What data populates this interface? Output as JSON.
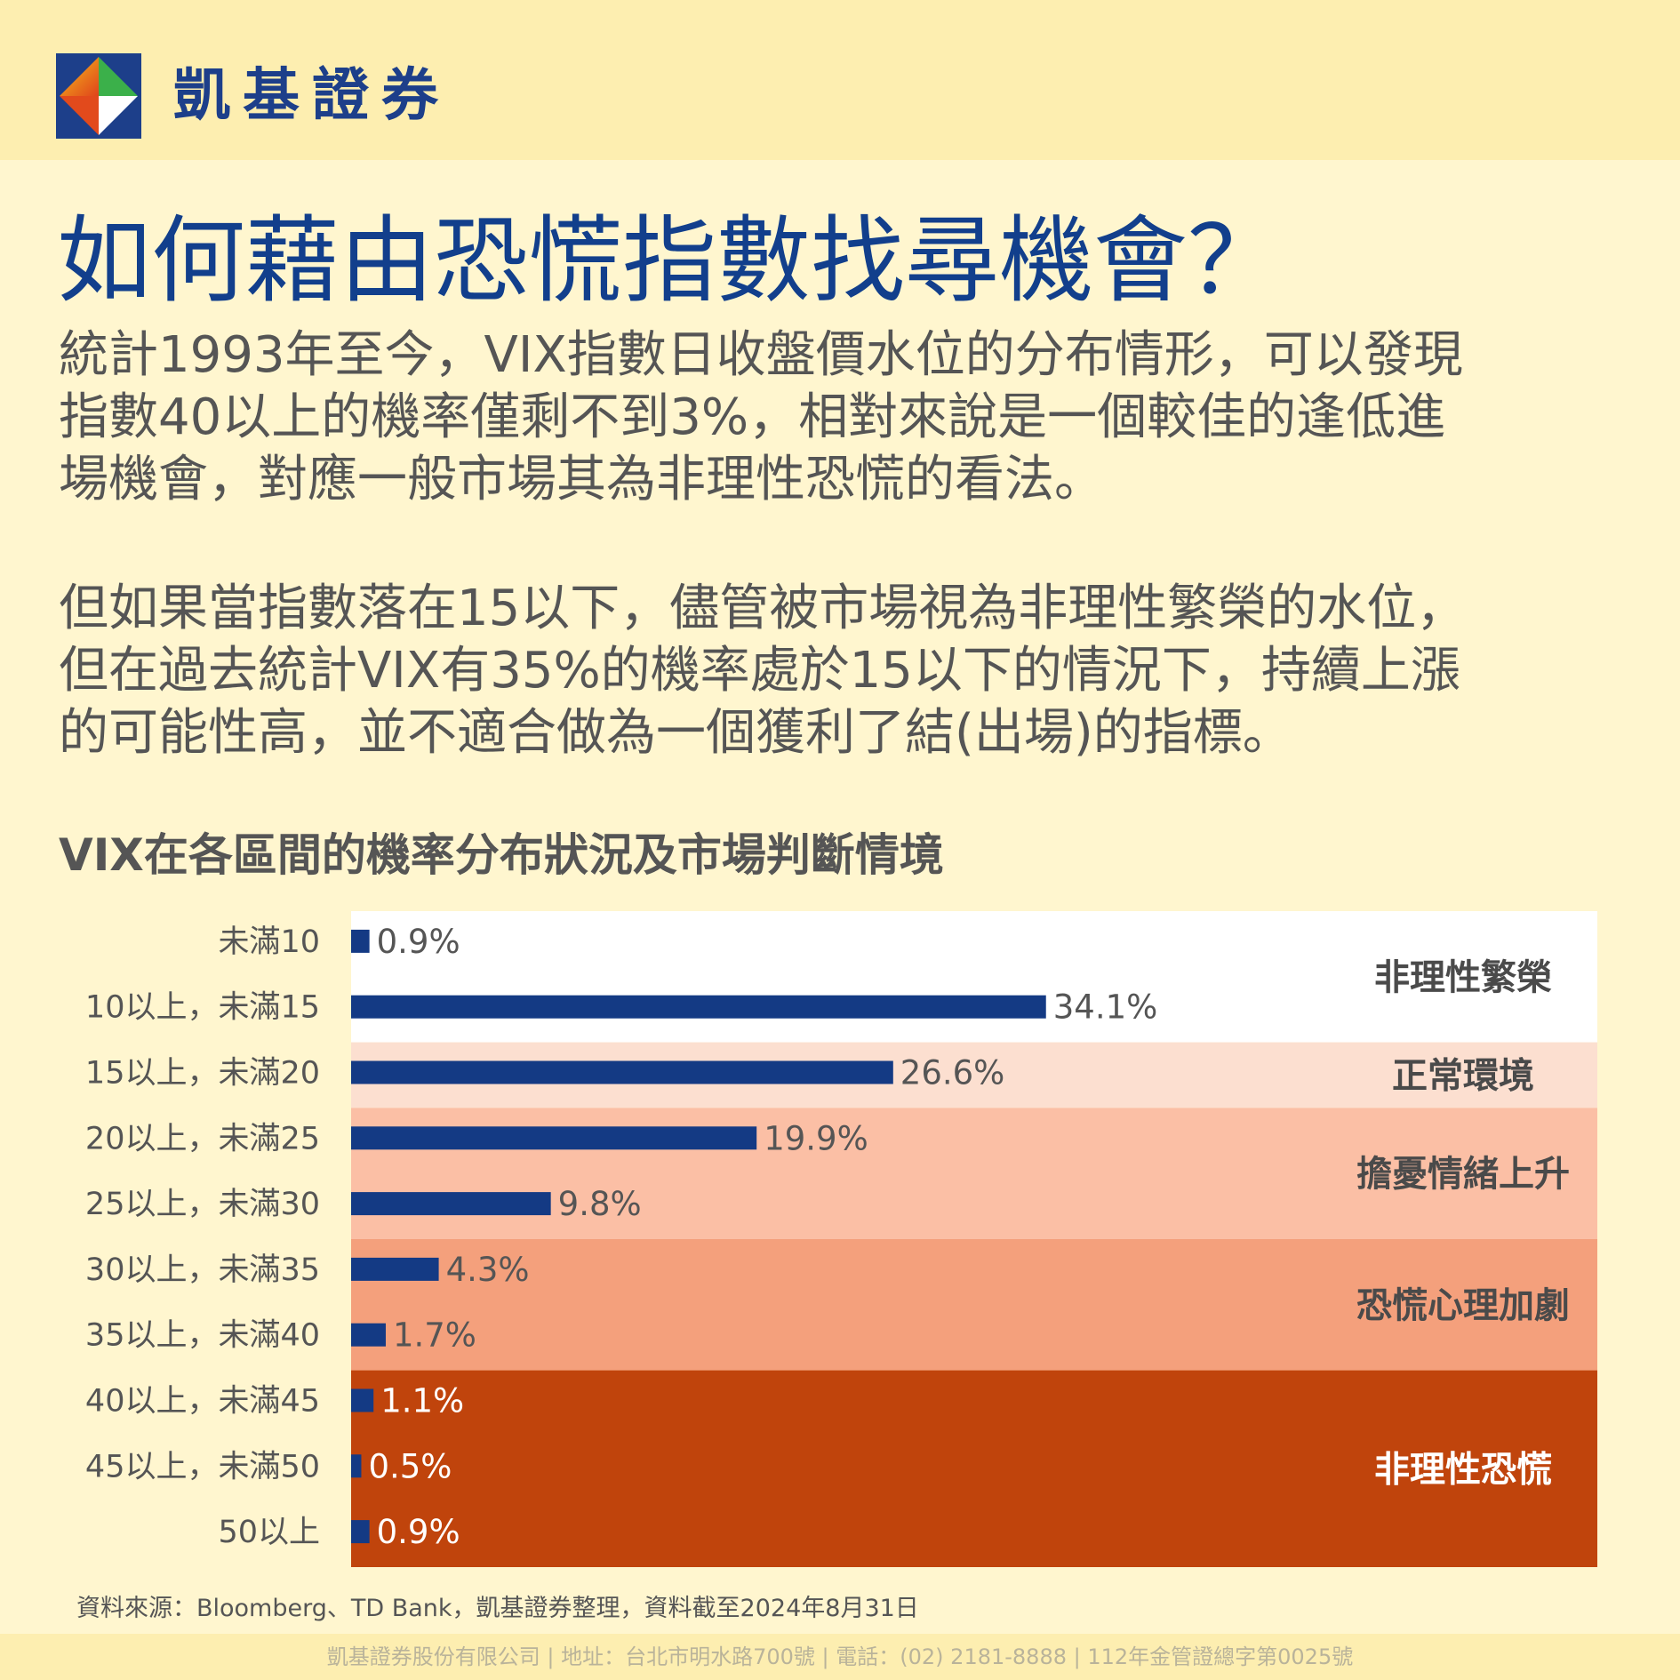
{
  "brand": {
    "name": "凱基證券"
  },
  "title": "如何藉由恐慌指數找尋機會？",
  "paragraphs": [
    [
      "統計1993年至今，VIX指數日收盤價水位的分布情形，可以發現",
      "指數40以上的機率僅剩不到3%，相對來說是一個較佳的逢低進",
      "場機會，對應一般市場其為非理性恐慌的看法。"
    ],
    [
      "但如果當指數落在15以下，儘管被市場視為非理性繁榮的水位，",
      "但在過去統計VIX有35%的機率處於15以下的情況下，持續上漲",
      "的可能性高，並不適合做為一個獲利了結(出場)的指標。"
    ]
  ],
  "chart_data": {
    "type": "bar",
    "orientation": "horizontal",
    "title": "VIX在各區間的機率分布狀況及市場判斷情境",
    "categories": [
      "未滿10",
      "10以上，未滿15",
      "15以上，未滿20",
      "20以上，未滿25",
      "25以上，未滿30",
      "30以上，未滿35",
      "35以上，未滿40",
      "40以上，未滿45",
      "45以上，未滿50",
      "50以上"
    ],
    "values": [
      0.9,
      34.1,
      26.6,
      19.9,
      9.8,
      4.3,
      1.7,
      1.1,
      0.5,
      0.9
    ],
    "value_labels": [
      "0.9%",
      "34.1%",
      "26.6%",
      "19.9%",
      "9.8%",
      "4.3%",
      "1.7%",
      "1.1%",
      "0.5%",
      "0.9%"
    ],
    "bar_color": "#143a84",
    "xlim": [
      0,
      40
    ],
    "zones": [
      {
        "label": "非理性繁榮",
        "from": 0,
        "to": 1,
        "color": "#ffffff",
        "text_color": "#4a4a4a"
      },
      {
        "label": "正常環境",
        "from": 2,
        "to": 2,
        "color": "#fcdfd0",
        "text_color": "#4a4a4a"
      },
      {
        "label": "擔憂情緒上升",
        "from": 3,
        "to": 4,
        "color": "#fbbfa5",
        "text_color": "#4a4a4a"
      },
      {
        "label": "恐慌心理加劇",
        "from": 5,
        "to": 6,
        "color": "#f4a07c",
        "text_color": "#4a4a4a"
      },
      {
        "label": "非理性恐慌",
        "from": 7,
        "to": 9,
        "color": "#c0440c",
        "text_color": "#ffffff"
      }
    ]
  },
  "source": "資料來源：Bloomberg、TD Bank，凱基證券整理，資料截至2024年8月31日",
  "footer": "凱基證券股份有限公司 | 地址：台北市明水路700號 | 電話：(02) 2181-8888 | 112年金管證總字第0025號"
}
